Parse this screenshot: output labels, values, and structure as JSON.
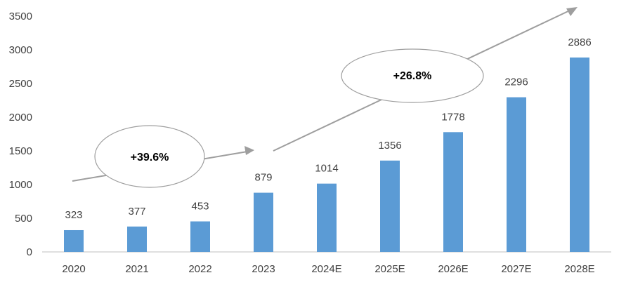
{
  "chart_data": {
    "type": "bar",
    "categories": [
      "2020",
      "2021",
      "2022",
      "2023",
      "2024E",
      "2025E",
      "2026E",
      "2027E",
      "2028E"
    ],
    "values": [
      323,
      377,
      453,
      879,
      1014,
      1356,
      1778,
      2296,
      2886
    ],
    "data_labels": [
      "323",
      "377",
      "453",
      "879",
      "1014",
      "1356",
      "1778",
      "2296",
      "2886"
    ],
    "ylim": [
      0,
      3500
    ],
    "yticks": [
      "0",
      "500",
      "1000",
      "1500",
      "2000",
      "2500",
      "3000",
      "3500"
    ],
    "grid": false,
    "bar_color": "#5b9bd5",
    "annotations": [
      {
        "text": "+39.6%",
        "from_category": "2020",
        "to_category": "2023"
      },
      {
        "text": "+26.8%",
        "from_category": "2024E",
        "to_category": "2028E"
      }
    ]
  }
}
